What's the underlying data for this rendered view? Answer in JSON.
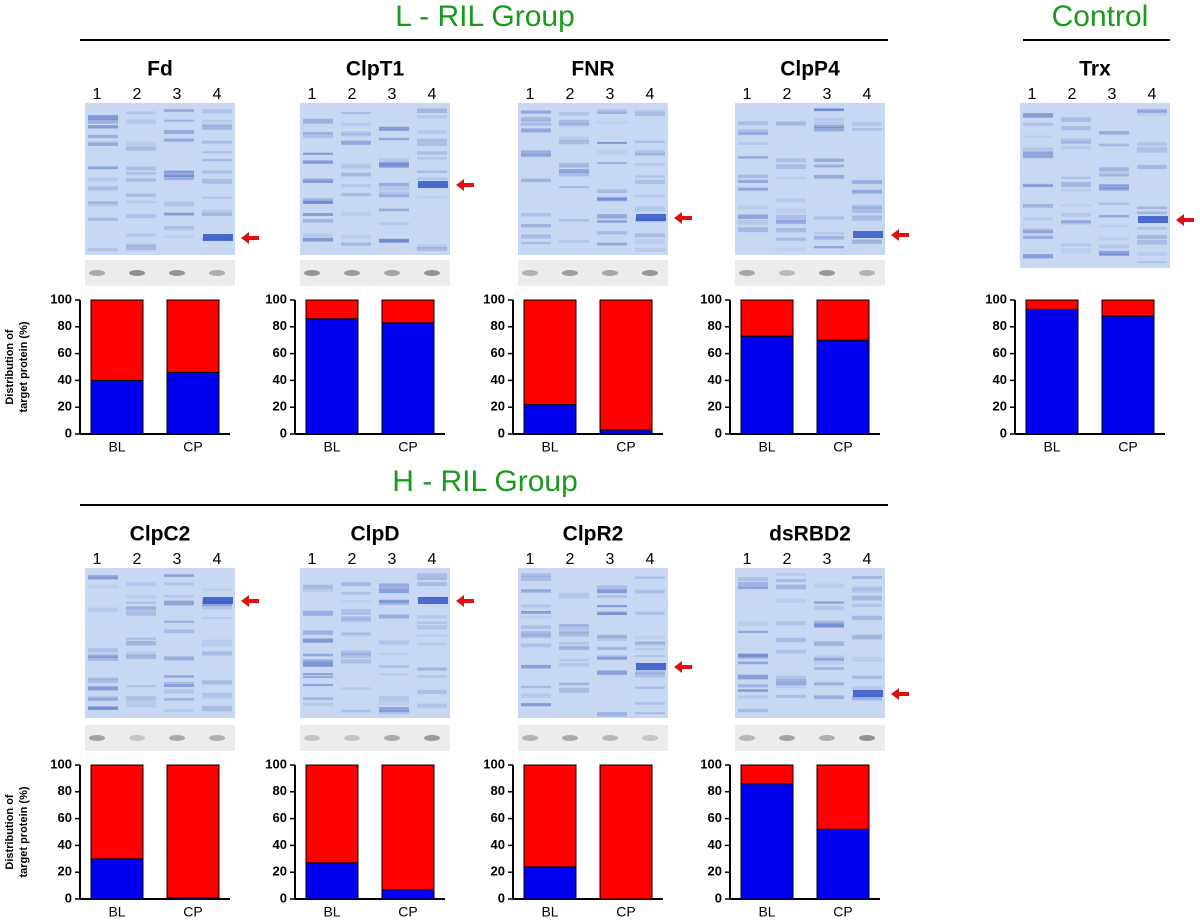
{
  "groups": [
    {
      "title": "L - RIL Group"
    },
    {
      "title": "Control"
    },
    {
      "title": "H - RIL Group"
    }
  ],
  "chart_data": [
    {
      "type": "bar",
      "stacked": true,
      "title": "Fd",
      "lanes": [
        "1",
        "2",
        "3",
        "4"
      ],
      "ylabel": [
        "Distribution of",
        "target protein (%)"
      ],
      "categories": [
        "BL",
        "CP"
      ],
      "series": [
        {
          "color": "#0000ee",
          "values": [
            40,
            46
          ]
        },
        {
          "color": "#ff0000",
          "values": [
            60,
            54
          ]
        }
      ],
      "ylim": [
        0,
        100
      ],
      "yticks": [
        0,
        20,
        40,
        60,
        80,
        100
      ]
    },
    {
      "type": "bar",
      "stacked": true,
      "title": "ClpT1",
      "lanes": [
        "1",
        "2",
        "3",
        "4"
      ],
      "categories": [
        "BL",
        "CP"
      ],
      "series": [
        {
          "color": "#0000ee",
          "values": [
            86,
            83
          ]
        },
        {
          "color": "#ff0000",
          "values": [
            14,
            17
          ]
        }
      ],
      "ylim": [
        0,
        100
      ],
      "yticks": [
        0,
        20,
        40,
        60,
        80,
        100
      ]
    },
    {
      "type": "bar",
      "stacked": true,
      "title": "FNR",
      "lanes": [
        "1",
        "2",
        "3",
        "4"
      ],
      "categories": [
        "BL",
        "CP"
      ],
      "series": [
        {
          "color": "#0000ee",
          "values": [
            22,
            3
          ]
        },
        {
          "color": "#ff0000",
          "values": [
            78,
            97
          ]
        }
      ],
      "ylim": [
        0,
        100
      ],
      "yticks": [
        0,
        20,
        40,
        60,
        80,
        100
      ]
    },
    {
      "type": "bar",
      "stacked": true,
      "title": "ClpP4",
      "lanes": [
        "1",
        "2",
        "3",
        "4"
      ],
      "categories": [
        "BL",
        "CP"
      ],
      "series": [
        {
          "color": "#0000ee",
          "values": [
            73,
            70
          ]
        },
        {
          "color": "#ff0000",
          "values": [
            27,
            30
          ]
        }
      ],
      "ylim": [
        0,
        100
      ],
      "yticks": [
        0,
        20,
        40,
        60,
        80,
        100
      ]
    },
    {
      "type": "bar",
      "stacked": true,
      "title": "Trx",
      "lanes": [
        "1",
        "2",
        "3",
        "4"
      ],
      "categories": [
        "BL",
        "CP"
      ],
      "series": [
        {
          "color": "#0000ee",
          "values": [
            93,
            88
          ]
        },
        {
          "color": "#ff0000",
          "values": [
            7,
            12
          ]
        }
      ],
      "ylim": [
        0,
        100
      ],
      "yticks": [
        0,
        20,
        40,
        60,
        80,
        100
      ]
    },
    {
      "type": "bar",
      "stacked": true,
      "title": "ClpC2",
      "lanes": [
        "1",
        "2",
        "3",
        "4"
      ],
      "ylabel": [
        "Distribution of",
        "target protein (%)"
      ],
      "categories": [
        "BL",
        "CP"
      ],
      "series": [
        {
          "color": "#0000ee",
          "values": [
            30,
            1
          ]
        },
        {
          "color": "#ff0000",
          "values": [
            70,
            99
          ]
        }
      ],
      "ylim": [
        0,
        100
      ],
      "yticks": [
        0,
        20,
        40,
        60,
        80,
        100
      ]
    },
    {
      "type": "bar",
      "stacked": true,
      "title": "ClpD",
      "lanes": [
        "1",
        "2",
        "3",
        "4"
      ],
      "categories": [
        "BL",
        "CP"
      ],
      "series": [
        {
          "color": "#0000ee",
          "values": [
            27,
            7
          ]
        },
        {
          "color": "#ff0000",
          "values": [
            73,
            93
          ]
        }
      ],
      "ylim": [
        0,
        100
      ],
      "yticks": [
        0,
        20,
        40,
        60,
        80,
        100
      ]
    },
    {
      "type": "bar",
      "stacked": true,
      "title": "ClpR2",
      "lanes": [
        "1",
        "2",
        "3",
        "4"
      ],
      "categories": [
        "BL",
        "CP"
      ],
      "series": [
        {
          "color": "#0000ee",
          "values": [
            24,
            0
          ]
        },
        {
          "color": "#ff0000",
          "values": [
            76,
            100
          ]
        }
      ],
      "ylim": [
        0,
        100
      ],
      "yticks": [
        0,
        20,
        40,
        60,
        80,
        100
      ]
    },
    {
      "type": "bar",
      "stacked": true,
      "title": "dsRBD2",
      "lanes": [
        "1",
        "2",
        "3",
        "4"
      ],
      "categories": [
        "BL",
        "CP"
      ],
      "series": [
        {
          "color": "#0000ee",
          "values": [
            86,
            52
          ]
        },
        {
          "color": "#ff0000",
          "values": [
            14,
            48
          ]
        }
      ],
      "ylim": [
        0,
        100
      ],
      "yticks": [
        0,
        20,
        40,
        60,
        80,
        100
      ]
    }
  ]
}
